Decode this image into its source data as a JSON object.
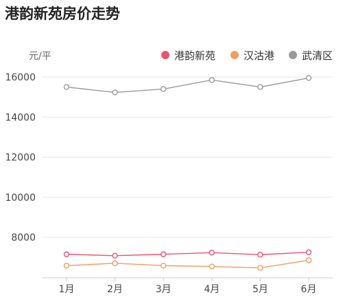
{
  "chart_data": {
    "type": "line",
    "title": "港韵新苑房价走势",
    "ylabel": "元/平",
    "xlabel": "",
    "categories": [
      "1月",
      "2月",
      "3月",
      "4月",
      "5月",
      "6月"
    ],
    "yticks": [
      8000,
      10000,
      12000,
      14000,
      16000
    ],
    "ylim": [
      7000,
      16200
    ],
    "grid": true,
    "legend_position": "top-right",
    "series": [
      {
        "name": "港韵新苑",
        "color": "#f0506e",
        "values": [
          7150,
          7080,
          7150,
          7230,
          7130,
          7250
        ]
      },
      {
        "name": "汉沽港",
        "color": "#f59a5e",
        "values": [
          6580,
          6700,
          6580,
          6540,
          6470,
          6850
        ]
      },
      {
        "name": "武清区",
        "color": "#999999",
        "values": [
          15500,
          15230,
          15400,
          15850,
          15500,
          15950
        ]
      }
    ]
  }
}
